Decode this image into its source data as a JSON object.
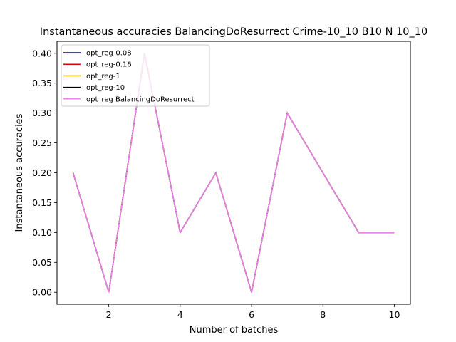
{
  "chart_data": {
    "type": "line",
    "title": "Instantaneous accuracies BalancingDoResurrect Crime-10_10 B10 N 10_10",
    "xlabel": "Number of batches",
    "ylabel": "Instantaneous accuracies",
    "xlim": [
      0.55,
      10.45
    ],
    "ylim": [
      -0.02,
      0.42
    ],
    "xticks": [
      2,
      4,
      6,
      8,
      10
    ],
    "yticks": [
      0.0,
      0.05,
      0.1,
      0.15,
      0.2,
      0.25,
      0.3,
      0.35,
      0.4
    ],
    "ytick_labels": [
      "0.00",
      "0.05",
      "0.10",
      "0.15",
      "0.20",
      "0.25",
      "0.30",
      "0.35",
      "0.40"
    ],
    "grid": false,
    "legend_position": "top-left",
    "x": [
      1,
      2,
      3,
      4,
      5,
      6,
      7,
      8,
      9,
      10
    ],
    "series": [
      {
        "name": "opt_reg-0.08",
        "color": "#0000cc",
        "values": [
          0.2,
          0.0,
          0.4,
          0.1,
          0.2,
          0.0,
          0.3,
          0.2,
          0.1,
          0.1
        ]
      },
      {
        "name": "opt_reg-0.16",
        "color": "#e00000",
        "values": [
          0.2,
          0.0,
          0.4,
          0.1,
          0.2,
          0.0,
          0.3,
          0.2,
          0.1,
          0.1
        ]
      },
      {
        "name": "opt_reg-1",
        "color": "#ffa500",
        "values": [
          0.2,
          0.0,
          0.4,
          0.1,
          0.2,
          0.0,
          0.3,
          0.2,
          0.1,
          0.1
        ]
      },
      {
        "name": "opt_reg-10",
        "color": "#000000",
        "values": [
          0.2,
          0.0,
          0.4,
          0.1,
          0.2,
          0.0,
          0.3,
          0.2,
          0.1,
          0.1
        ]
      },
      {
        "name": "opt_reg BalancingDoResurrect",
        "color": "#ee82ee",
        "values": [
          0.2,
          0.0,
          0.4,
          0.1,
          0.2,
          0.0,
          0.3,
          0.2,
          0.1,
          0.1
        ]
      }
    ]
  }
}
